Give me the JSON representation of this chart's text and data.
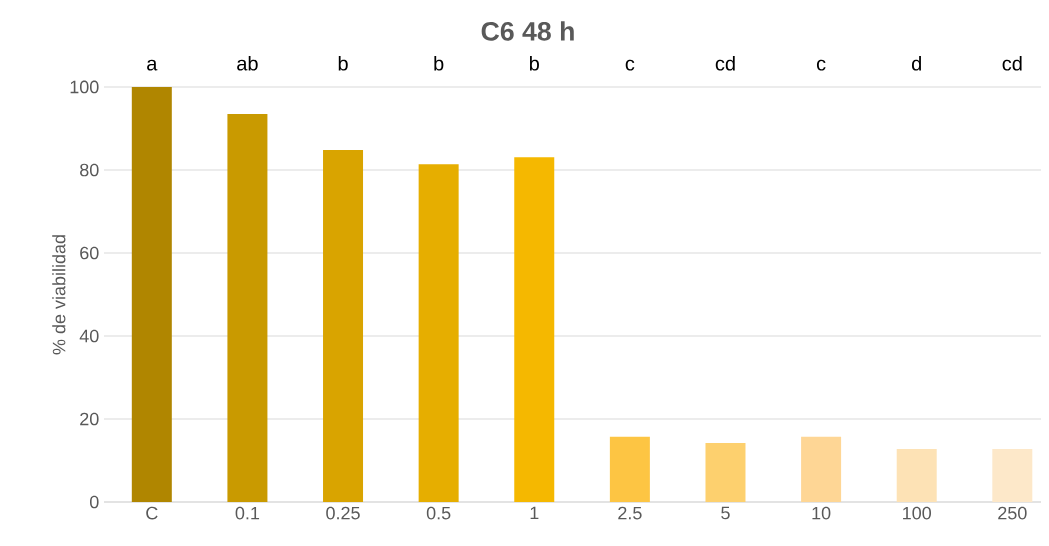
{
  "chart_data": {
    "type": "bar",
    "title": "C6 48 h",
    "ylabel": "% de viabilidad",
    "categories": [
      "C",
      "0.1",
      "0.25",
      "0.5",
      "1",
      "2.5",
      "5",
      "10",
      "100",
      "250"
    ],
    "values": [
      100,
      93.5,
      84.8,
      81.4,
      83.1,
      15.7,
      14.2,
      15.7,
      12.8,
      12.8
    ],
    "colors": [
      "#b08600",
      "#c99a00",
      "#d9a400",
      "#e6ae00",
      "#f5b800",
      "#fdc543",
      "#fdd06e",
      "#fed695",
      "#fde2b5",
      "#fde8c9"
    ],
    "ylim": [
      0,
      100
    ],
    "yticks": [
      0,
      20,
      40,
      60,
      80,
      100
    ],
    "grid": "y",
    "annotations": [
      "a",
      "ab",
      "b",
      "b",
      "b",
      "c",
      "cd",
      "c",
      "d",
      "cd"
    ]
  }
}
